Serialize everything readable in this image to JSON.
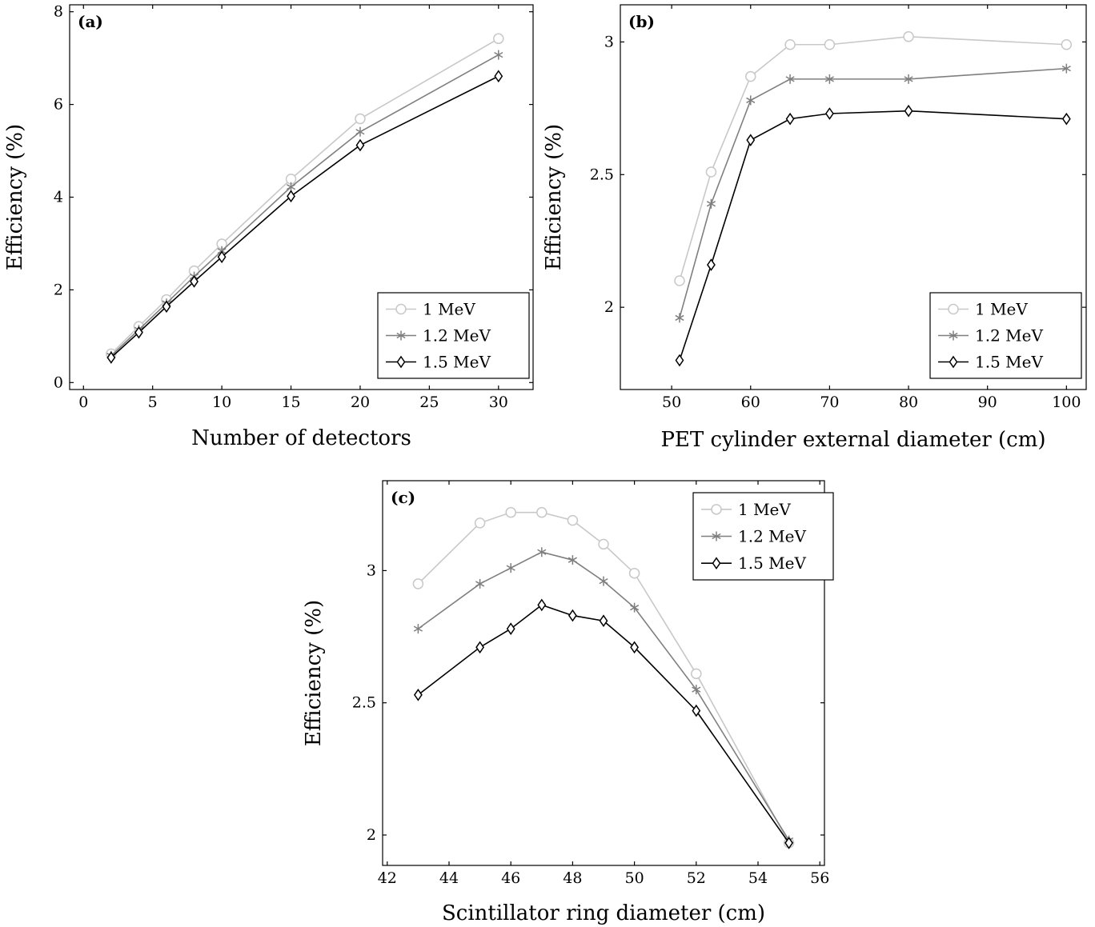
{
  "chart_data": [
    {
      "id": "a",
      "type": "line",
      "panel_label": "(a)",
      "xlabel": "Number of detectors",
      "ylabel": "Efficiency (%)",
      "xlim": [
        -1,
        32.5
      ],
      "ylim": [
        -0.15,
        8.15
      ],
      "xticks": [
        0,
        5,
        10,
        15,
        20,
        25,
        30
      ],
      "yticks": [
        0,
        2,
        4,
        6,
        8
      ],
      "legend_position": "bottom-right",
      "series": [
        {
          "name": "1 MeV",
          "color": "#c8c8c8",
          "marker": "circle",
          "x": [
            2,
            4,
            6,
            8,
            10,
            15,
            20,
            30
          ],
          "y": [
            0.62,
            1.21,
            1.79,
            2.41,
            2.99,
            4.39,
            5.69,
            7.42
          ]
        },
        {
          "name": "1.2 MeV",
          "color": "#7f7f7f",
          "marker": "star",
          "x": [
            2,
            4,
            6,
            8,
            10,
            15,
            20,
            30
          ],
          "y": [
            0.58,
            1.14,
            1.71,
            2.29,
            2.84,
            4.22,
            5.41,
            7.07
          ]
        },
        {
          "name": "1.5 MeV",
          "color": "#000000",
          "marker": "diamond",
          "x": [
            2,
            4,
            6,
            8,
            10,
            15,
            20,
            30
          ],
          "y": [
            0.54,
            1.08,
            1.64,
            2.18,
            2.71,
            4.02,
            5.12,
            6.61
          ]
        }
      ]
    },
    {
      "id": "b",
      "type": "line",
      "panel_label": "(b)",
      "xlabel": "PET cylinder external diameter (cm)",
      "ylabel": "Efficiency (%)",
      "xlim": [
        43.5,
        102.5
      ],
      "ylim": [
        1.69,
        3.14
      ],
      "xticks": [
        50,
        60,
        70,
        80,
        90,
        100
      ],
      "yticks": [
        2,
        2.5,
        3
      ],
      "legend_position": "bottom-right",
      "series": [
        {
          "name": "1 MeV",
          "color": "#c8c8c8",
          "marker": "circle",
          "x": [
            51,
            55,
            60,
            65,
            70,
            80,
            100
          ],
          "y": [
            2.1,
            2.51,
            2.87,
            2.99,
            2.99,
            3.02,
            2.99
          ]
        },
        {
          "name": "1.2 MeV",
          "color": "#7f7f7f",
          "marker": "star",
          "x": [
            51,
            55,
            60,
            65,
            70,
            80,
            100
          ],
          "y": [
            1.96,
            2.39,
            2.78,
            2.86,
            2.86,
            2.86,
            2.9
          ]
        },
        {
          "name": "1.5 MeV",
          "color": "#000000",
          "marker": "diamond",
          "x": [
            51,
            55,
            60,
            65,
            70,
            80,
            100
          ],
          "y": [
            1.8,
            2.16,
            2.63,
            2.71,
            2.73,
            2.74,
            2.71
          ]
        }
      ]
    },
    {
      "id": "c",
      "type": "line",
      "panel_label": "(c)",
      "xlabel": "Scintillator ring diameter (cm)",
      "ylabel": "Efficiency (%)",
      "xlim": [
        41.85,
        56.15
      ],
      "ylim": [
        1.885,
        3.34
      ],
      "xticks": [
        42,
        44,
        46,
        48,
        50,
        52,
        54,
        56
      ],
      "yticks": [
        2,
        2.5,
        3
      ],
      "legend_position": "top-right",
      "series": [
        {
          "name": "1 MeV",
          "color": "#c8c8c8",
          "marker": "circle",
          "x": [
            43,
            45,
            46,
            47,
            48,
            49,
            50,
            52,
            55
          ],
          "y": [
            2.95,
            3.18,
            3.22,
            3.22,
            3.19,
            3.1,
            2.99,
            2.61,
            1.97
          ]
        },
        {
          "name": "1.2 MeV",
          "color": "#7f7f7f",
          "marker": "star",
          "x": [
            43,
            45,
            46,
            47,
            48,
            49,
            50,
            52,
            55
          ],
          "y": [
            2.78,
            2.95,
            3.01,
            3.07,
            3.04,
            2.96,
            2.86,
            2.55,
            1.98
          ]
        },
        {
          "name": "1.5 MeV",
          "color": "#000000",
          "marker": "diamond",
          "x": [
            43,
            45,
            46,
            47,
            48,
            49,
            50,
            52,
            55
          ],
          "y": [
            2.53,
            2.71,
            2.78,
            2.87,
            2.83,
            2.81,
            2.71,
            2.47,
            1.97
          ]
        }
      ]
    }
  ]
}
